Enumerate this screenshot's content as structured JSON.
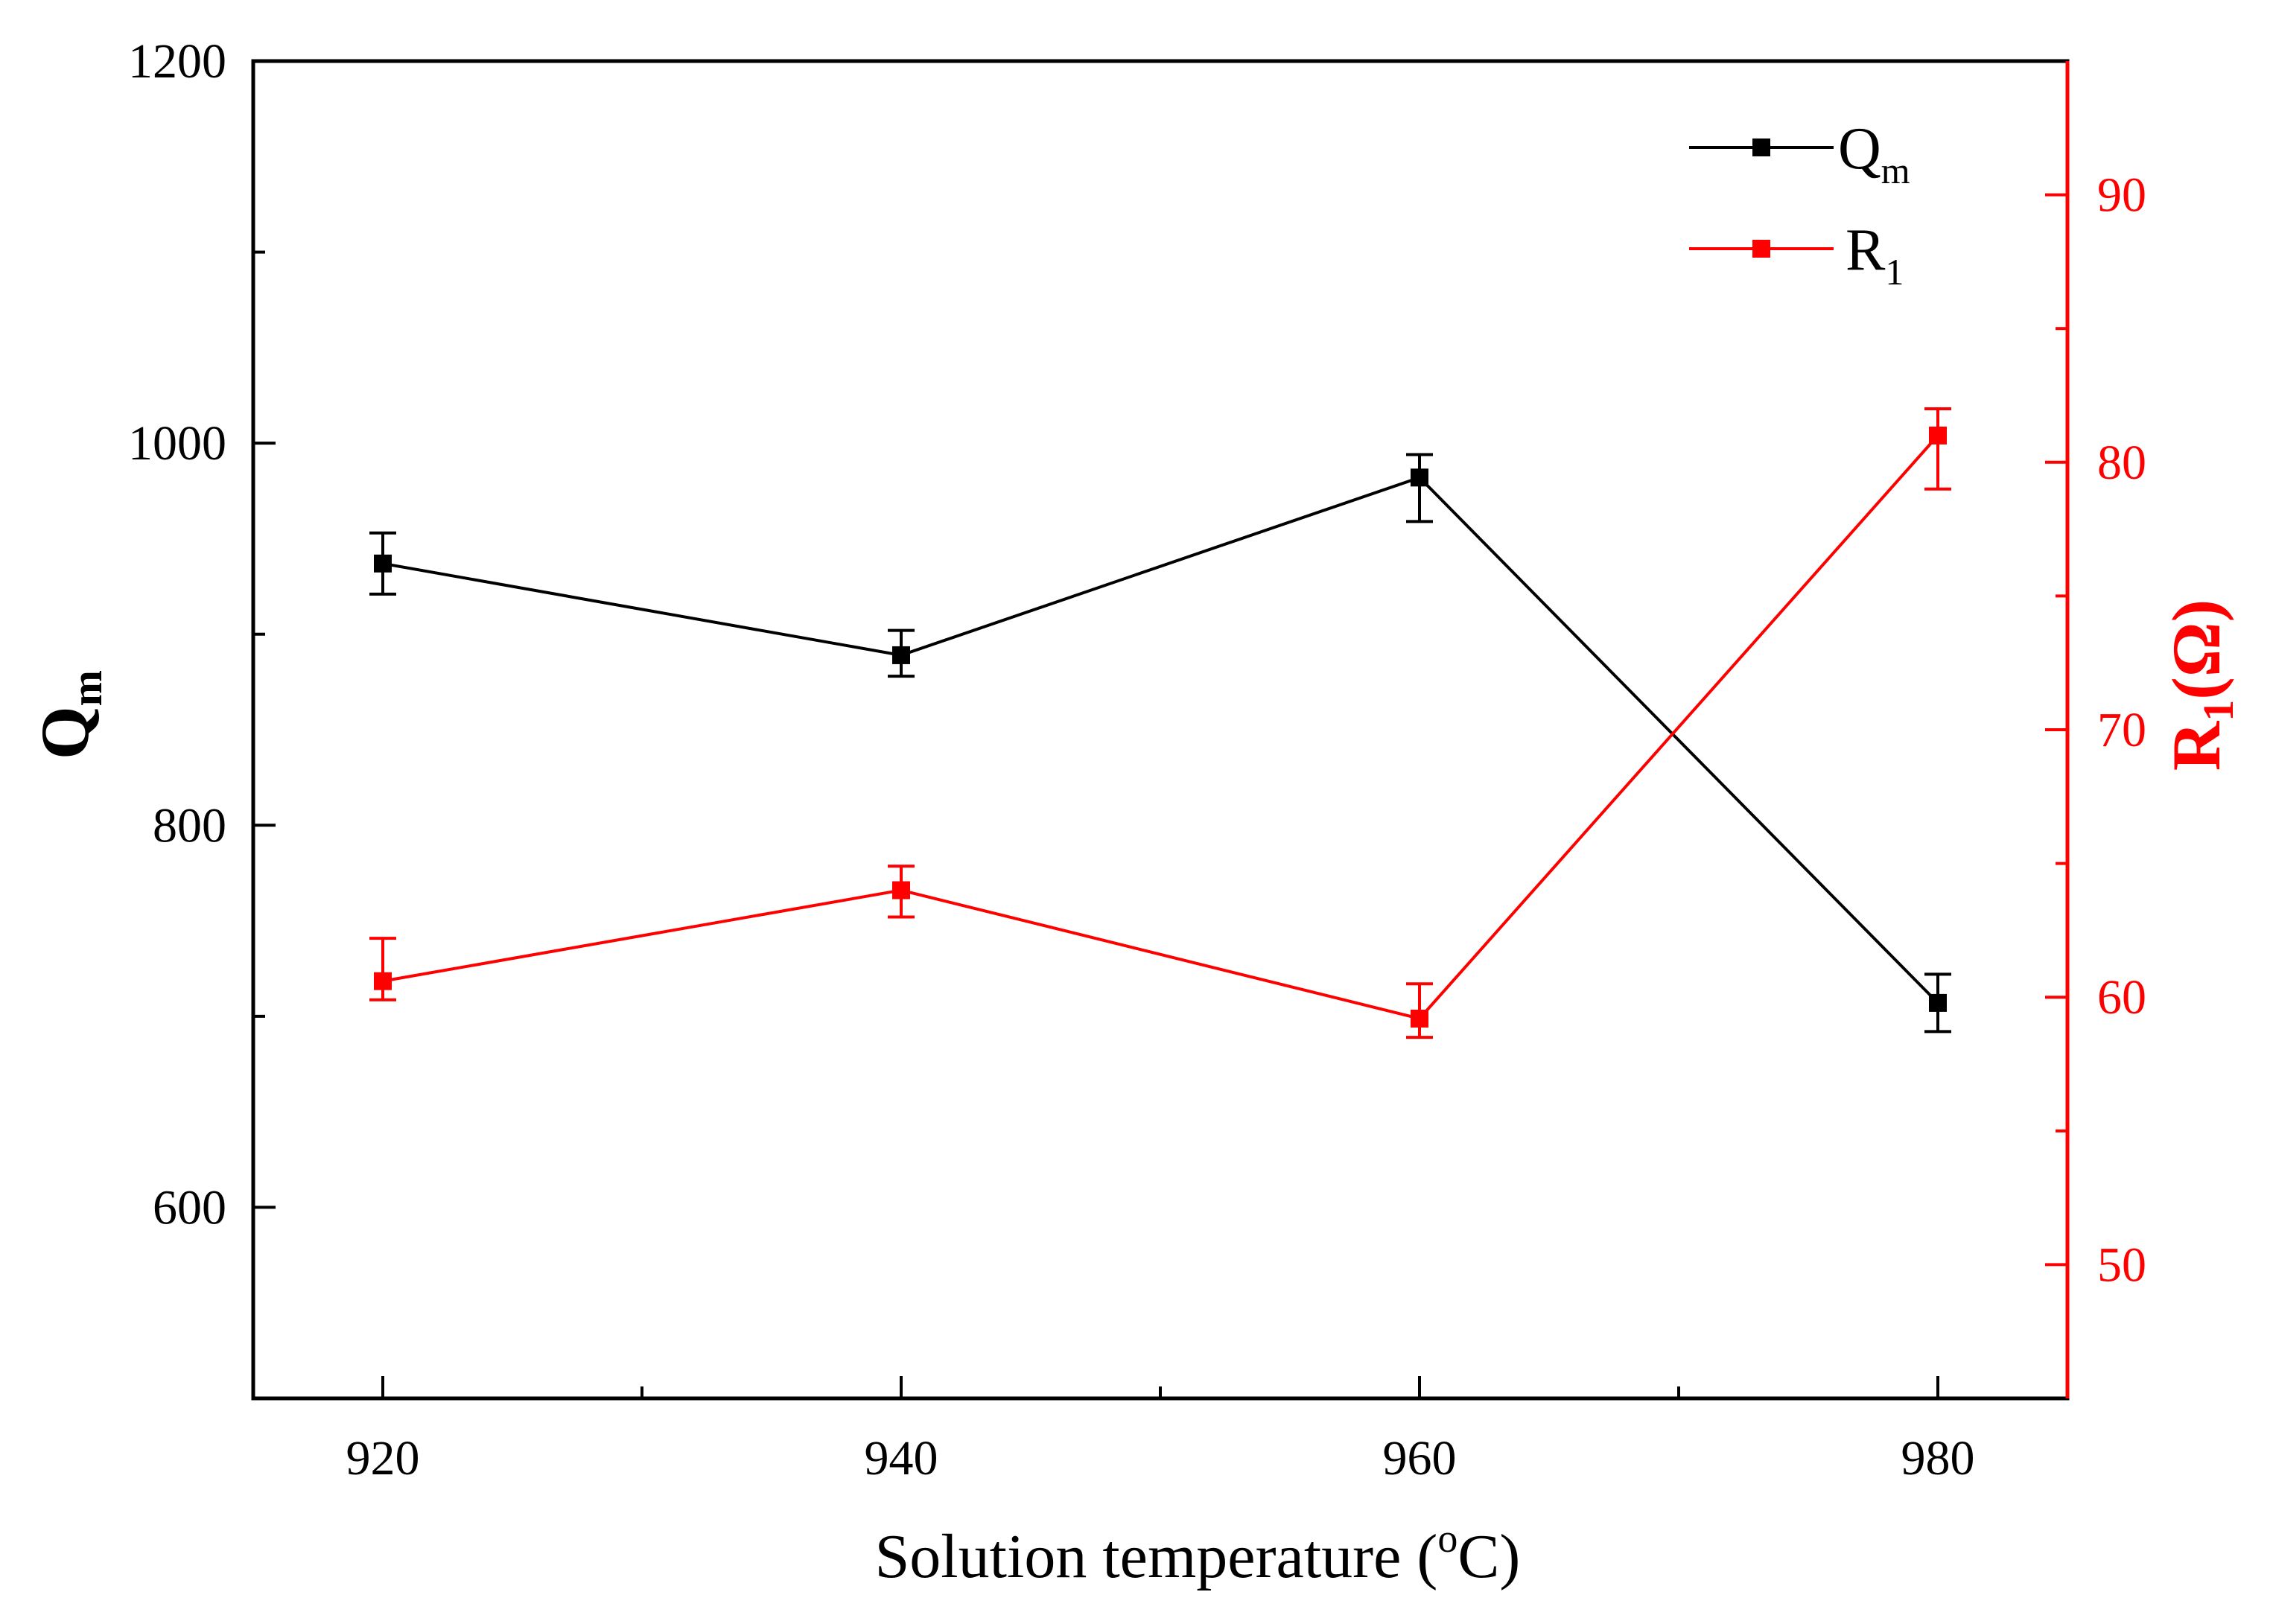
{
  "chart_data": {
    "type": "line",
    "x": [
      920,
      940,
      960,
      980
    ],
    "xlabel": "Solution temperature (",
    "xlabel_unit_sup": "o",
    "xlabel_unit_tail": "C)",
    "xlim": [
      915,
      985
    ],
    "x_major_ticks": [
      920,
      940,
      960,
      980
    ],
    "x_minor_ticks": [
      930,
      950,
      970
    ],
    "x_tick_labels": [
      "920",
      "940",
      "960",
      "980"
    ],
    "left_axis": {
      "label_main": "Q",
      "label_sub": "m",
      "ylim": [
        500,
        1200
      ],
      "major_ticks": [
        600,
        800,
        1000,
        1200
      ],
      "minor_ticks": [
        700,
        900,
        1100
      ],
      "tick_labels": [
        "600",
        "800",
        "1000",
        "1200"
      ],
      "color": "#000000"
    },
    "right_axis": {
      "label_main": "R",
      "label_sub": "1",
      "label_unit": "(Ω)",
      "ylim": [
        45,
        95
      ],
      "major_ticks": [
        50,
        60,
        70,
        80,
        90
      ],
      "minor_ticks": [
        55,
        65,
        75,
        85
      ],
      "tick_labels": [
        "50",
        "60",
        "70",
        "80",
        "90"
      ],
      "color": "#ff0000"
    },
    "series": [
      {
        "name_main": "Q",
        "name_sub": "m",
        "axis": "left",
        "color": "#000000",
        "values": [
          937,
          889,
          982,
          707
        ],
        "err_low": [
          921,
          878,
          959,
          692
        ],
        "err_high": [
          953,
          902,
          994,
          722
        ]
      },
      {
        "name_main": "R",
        "name_sub": "1",
        "axis": "right",
        "color": "#ff0000",
        "values": [
          60.6,
          64.0,
          59.2,
          81.0
        ],
        "err_low": [
          59.9,
          63.0,
          58.5,
          79.0
        ],
        "err_high": [
          62.2,
          64.9,
          60.5,
          82.0
        ]
      }
    ],
    "legend_position": "top-right",
    "grid": false
  }
}
